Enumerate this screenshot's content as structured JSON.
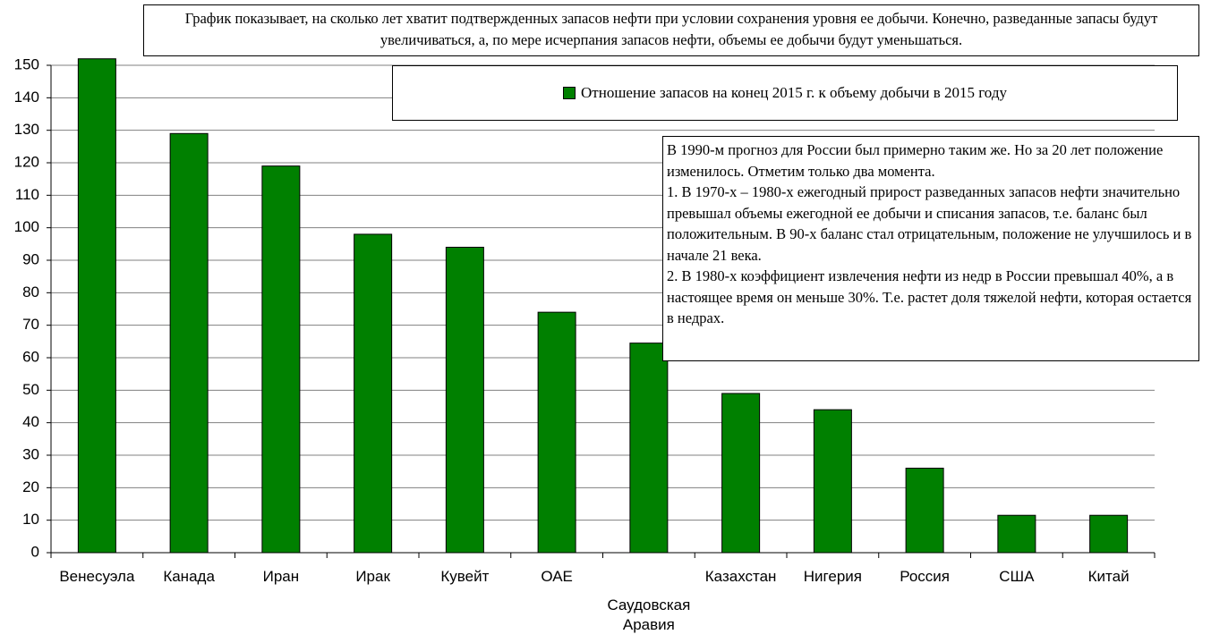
{
  "chart_data": {
    "type": "bar",
    "title": "График показывает, на сколько лет хватит подтвержденных запасов нефти при условии сохранения уровня ее добычи. Конечно, разведанные запасы будут увеличиваться, а, по мере исчерпания запасов нефти, объемы ее добычи будут уменьшаться.",
    "categories": [
      "Венесуэла",
      "Канада",
      "Иран",
      "Ирак",
      "Кувейт",
      "ОАЕ",
      "Саудовская Аравия",
      "Казахстан",
      "Нигерия",
      "Россия",
      "США",
      "Китай"
    ],
    "series": [
      {
        "name": "Отношение запасов на конец 2015 г. к объему добычи в 2015 году",
        "color": "#008000",
        "values": [
          152,
          129,
          119,
          98,
          94,
          74,
          64.5,
          49,
          44,
          26,
          11.5,
          11.5
        ]
      }
    ],
    "annotations": [
      "В 1990-м прогноз для России был примерно таким же. Но за 20 лет положение изменилось. Отметим только два момента.",
      "1. В 1970-х – 1980-х ежегодный прирост разведанных запасов нефти значительно превышал объемы ежегодной ее добычи и списания запасов, т.е. баланс был положительным. В 90-х баланс стал отрицательным, положение не улучшилось и в начале 21 века.",
      "2. В 1980-х коэффициент извлечения нефти из недр в России превышал 40%,  а в настоящее время он меньше 30%. Т.е. растет доля тяжелой нефти, которая остается в недрах."
    ],
    "ylim": [
      0,
      150
    ],
    "yticks": [
      0,
      10,
      20,
      30,
      40,
      50,
      60,
      70,
      80,
      90,
      100,
      110,
      120,
      130,
      140,
      150
    ],
    "grid": true,
    "legend": "top"
  }
}
